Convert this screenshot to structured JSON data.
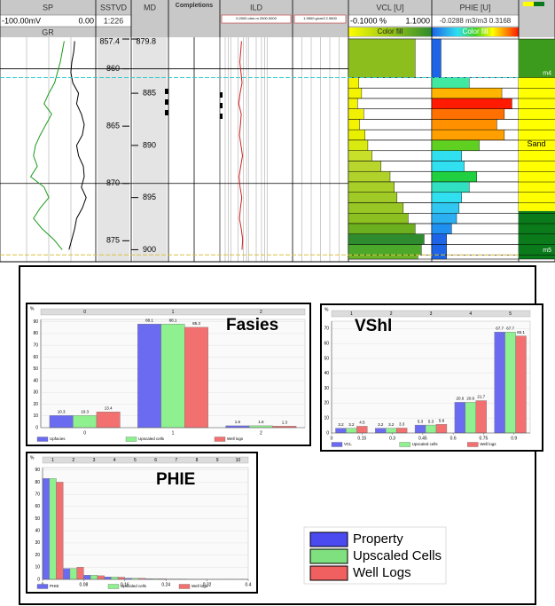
{
  "well_log": {
    "curve_md": [
      880,
      881,
      882,
      883,
      884,
      885,
      886,
      887,
      888,
      889,
      890,
      891,
      892,
      893,
      894,
      895,
      896,
      897,
      898,
      899,
      900
    ],
    "sp": {
      "title": "SP",
      "scale": [
        {
          "value": -100,
          "label": "-100.00mV"
        },
        {
          "value": 0,
          "label": "0.00"
        }
      ],
      "color": "#000000",
      "values": [
        -22,
        -23,
        -25,
        -26,
        -24,
        -18,
        -20,
        -15,
        -12,
        -14,
        -20,
        -18,
        -13,
        -12,
        -15,
        -10,
        -14,
        -20,
        -22,
        -25,
        -28
      ]
    },
    "gr": {
      "title": "GR",
      "color": "#1a9a1a",
      "values": [
        -33,
        -35,
        -37,
        -40,
        -43,
        -49,
        -54,
        -46,
        -52,
        -58,
        -63,
        -65,
        -61,
        -68,
        -54,
        -49,
        -58,
        -65,
        -56,
        -44,
        -35
      ]
    },
    "sstvd": {
      "title": "SSTVD",
      "scale_label": "1:226",
      "ylim": [
        857.4,
        876.6
      ],
      "ticks": [
        857.4,
        860,
        865,
        870,
        875
      ],
      "lines": [
        860,
        870
      ]
    },
    "md": {
      "title": "MD",
      "ylim": [
        879.8,
        900.9
      ],
      "ticks": [
        879.8,
        885,
        890,
        895,
        900
      ]
    },
    "completions": {
      "title": "Completions"
    },
    "ild": {
      "title": "ILD",
      "scale_label": "0.2000 ohm.m 2000.0000",
      "xlim": [
        0.2,
        2000
      ],
      "log": true,
      "color": "#d02020",
      "values": [
        3.1,
        2.8,
        2.5,
        2.9,
        3.3,
        2.6,
        2.2,
        3.0,
        2.7,
        2.4,
        2.9,
        3.5,
        2.8,
        2.3,
        2.6,
        3.2,
        2.7,
        2.4,
        3.0,
        3.6,
        3.3
      ]
    },
    "density": {
      "scale_label": "1.9500 g/cm3 2.9500"
    },
    "vcl": {
      "title": "VCL [U]",
      "scale": [
        {
          "value": -0.1,
          "label": "-0.1000 %"
        },
        {
          "value": 1.1,
          "label": "1.1000"
        }
      ],
      "fill_label": "Color fill",
      "edges": [
        879.8,
        883.5,
        884.5,
        885.5,
        886.5,
        887.5,
        888.5,
        889.5,
        890.5,
        891.5,
        892.5,
        893.5,
        894.5,
        895.5,
        896.5,
        897.5,
        898.5,
        899.5,
        900.5,
        900.9
      ],
      "values": [
        0.86,
        0.05,
        0.09,
        0.03,
        0.12,
        0.06,
        0.14,
        0.18,
        0.24,
        0.37,
        0.5,
        0.56,
        0.6,
        0.69,
        0.76,
        0.86,
        0.99,
        0.95,
        0.9
      ],
      "colors": [
        "#8cbf1e",
        "#f4f400",
        "#f4f400",
        "#f4f400",
        "#f0f000",
        "#f4f400",
        "#e8f000",
        "#d8ea10",
        "#c8e02a",
        "#b8d62e",
        "#b0d22a",
        "#a8ce28",
        "#a0ca26",
        "#98c624",
        "#8cc020",
        "#6cb020",
        "#2e8b2e",
        "#4ca82a",
        "#6cb428"
      ]
    },
    "phie": {
      "title": "PHIE [U]",
      "scale_label": "-0.0288 m3/m3 0.3168",
      "xlim": [
        -0.0288,
        0.3168
      ],
      "fill_label": "Color fill",
      "edges": [
        879.8,
        883.5,
        884.5,
        885.5,
        886.5,
        887.5,
        888.5,
        889.5,
        890.5,
        891.5,
        892.5,
        893.5,
        894.5,
        895.5,
        896.5,
        897.5,
        898.5,
        899.5,
        900.5,
        900.9
      ],
      "values": [
        0.008,
        0.12,
        0.25,
        0.29,
        0.26,
        0.23,
        0.26,
        0.16,
        0.09,
        0.1,
        0.15,
        0.12,
        0.09,
        0.08,
        0.07,
        0.05,
        0.03,
        0.03,
        0.03
      ],
      "colors": [
        "#1e64e6",
        "#40e8a0",
        "#ffb400",
        "#ff1a00",
        "#ff7000",
        "#ff9000",
        "#ffa000",
        "#60d020",
        "#30e0f0",
        "#30e0f0",
        "#20d040",
        "#30e0c0",
        "#30e0f0",
        "#30c8f0",
        "#2ab0f0",
        "#2090f0",
        "#1e64e6",
        "#1e64e6",
        "#1e64e6"
      ]
    },
    "zones": {
      "edges": [
        879.8,
        883.5,
        896.3,
        900.9
      ],
      "colors": [
        "#3c9a1c",
        "#ffff00",
        "#0a7a1a"
      ],
      "labels": [
        null,
        "Sand",
        null
      ]
    },
    "horizons": [
      {
        "name": "m4",
        "md": 883.5,
        "color": "#30c8c8"
      },
      {
        "name": "m5",
        "md": 900.5,
        "color": "#d8c040"
      }
    ]
  },
  "chart_data": [
    {
      "type": "bar",
      "title": "Fasies",
      "y_label": "%",
      "categories": [
        "0",
        "1",
        "2"
      ],
      "data_labels": true,
      "series": [
        {
          "name": "Upfacies",
          "color": "#6b6bf2",
          "values": [
            10.3,
            88.1,
            1.6
          ]
        },
        {
          "name": "Upscaled cells",
          "color": "#8ff08f",
          "values": [
            10.3,
            88.1,
            1.6
          ]
        },
        {
          "name": "Well logs",
          "color": "#f27070",
          "values": [
            13.4,
            85.3,
            1.3
          ]
        }
      ],
      "ylim": [
        0,
        92
      ],
      "yticks": [
        0,
        10,
        20,
        30,
        40,
        50,
        60,
        70,
        80,
        90
      ]
    },
    {
      "type": "bar",
      "title": "VShl",
      "y_label": "%",
      "categories": [
        "1",
        "2",
        "3",
        "4",
        "5"
      ],
      "data_labels": true,
      "series": [
        {
          "name": "VCL",
          "color": "#6b6bf2",
          "values": [
            3.2,
            3.2,
            5.3,
            20.6,
            67.7
          ]
        },
        {
          "name": "Upscaled cells",
          "color": "#8ff08f",
          "values": [
            3.2,
            3.2,
            5.3,
            20.6,
            67.7
          ]
        },
        {
          "name": "Well logs",
          "color": "#f27070",
          "values": [
            4.5,
            3.3,
            5.8,
            21.7,
            65.1
          ]
        }
      ],
      "ylim": [
        0,
        75
      ],
      "yticks": [
        0,
        10,
        20,
        30,
        40,
        50,
        60,
        70
      ],
      "xlim": [
        0,
        0.98
      ],
      "xticks": [
        0,
        0.15,
        0.3,
        0.45,
        0.6,
        0.75,
        0.9
      ]
    },
    {
      "type": "bar",
      "title": "PHIE",
      "y_label": "%",
      "categories": [
        "1",
        "2",
        "3",
        "4",
        "5",
        "6",
        "7",
        "8",
        "9",
        "10"
      ],
      "data_labels": false,
      "series": [
        {
          "name": "PHIE",
          "color": "#6b6bf2",
          "values": [
            83,
            9,
            3.5,
            2,
            1,
            0.6,
            0.3,
            0.2,
            0.1,
            0.1
          ]
        },
        {
          "name": "Upscaled cells",
          "color": "#8ff08f",
          "values": [
            83,
            9,
            3.5,
            2,
            1,
            0.6,
            0.3,
            0.2,
            0.1,
            0.1
          ]
        },
        {
          "name": "Well logs",
          "color": "#f27070",
          "values": [
            80,
            10,
            3,
            1.8,
            0.9,
            0.5,
            0.3,
            0.2,
            0.1,
            0.1
          ]
        }
      ],
      "ylim": [
        0,
        92
      ],
      "yticks": [
        0,
        10,
        20,
        30,
        40,
        50,
        60,
        70,
        80,
        90
      ],
      "xlim": [
        0,
        0.4
      ],
      "xticks": [
        0,
        0.08,
        0.16,
        0.24,
        0.32,
        0.4
      ]
    }
  ],
  "legend": {
    "items": [
      {
        "name": "Property",
        "color": "#4a4af0"
      },
      {
        "name": "Upscaled Cells",
        "color": "#7fe07f"
      },
      {
        "name": "Well Logs",
        "color": "#f06060"
      }
    ]
  }
}
